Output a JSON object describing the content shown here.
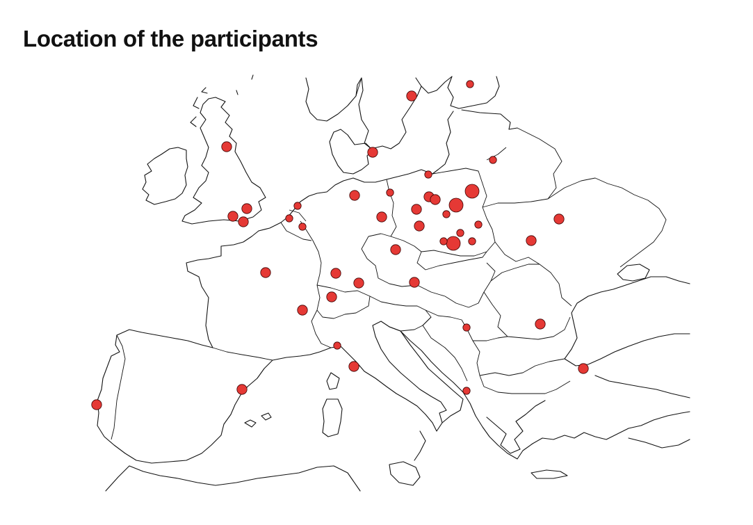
{
  "title": "Location of the participants",
  "style": {
    "marker_color": "#e53935",
    "outline_color": "#111111",
    "background": "#ffffff"
  },
  "participants": [
    {
      "place": "Edinburgh",
      "size": "medium"
    },
    {
      "place": "Cambridge",
      "size": "medium"
    },
    {
      "place": "Oxford",
      "size": "medium"
    },
    {
      "place": "Bristol",
      "size": "medium"
    },
    {
      "place": "Amsterdam",
      "size": "small"
    },
    {
      "place": "Leiden",
      "size": "small"
    },
    {
      "place": "Leuven",
      "size": "small"
    },
    {
      "place": "Paris",
      "size": "medium"
    },
    {
      "place": "Lyon",
      "size": "medium"
    },
    {
      "place": "Zurich",
      "size": "medium"
    },
    {
      "place": "Stuttgart",
      "size": "medium"
    },
    {
      "place": "Munich",
      "size": "medium"
    },
    {
      "place": "Hamburg",
      "size": "medium"
    },
    {
      "place": "Jena",
      "size": "medium"
    },
    {
      "place": "Berlin",
      "size": "small"
    },
    {
      "place": "Copenhagen",
      "size": "medium"
    },
    {
      "place": "Stockholm",
      "size": "medium"
    },
    {
      "place": "Tallinn",
      "size": "small"
    },
    {
      "place": "Vilnius",
      "size": "small"
    },
    {
      "place": "Gdansk",
      "size": "small"
    },
    {
      "place": "Torun",
      "size": "medium"
    },
    {
      "place": "Bydgoszcz",
      "size": "medium"
    },
    {
      "place": "Warsaw",
      "size": "large"
    },
    {
      "place": "Bialystok",
      "size": "large"
    },
    {
      "place": "Poznan",
      "size": "medium"
    },
    {
      "place": "Wroclaw",
      "size": "medium"
    },
    {
      "place": "Lodz",
      "size": "small"
    },
    {
      "place": "Kielce",
      "size": "small"
    },
    {
      "place": "Lublin",
      "size": "small"
    },
    {
      "place": "Krakow",
      "size": "large"
    },
    {
      "place": "Katowice",
      "size": "small"
    },
    {
      "place": "Rzeszow",
      "size": "small"
    },
    {
      "place": "Prague",
      "size": "medium"
    },
    {
      "place": "Vienna",
      "size": "medium"
    },
    {
      "place": "Kyiv",
      "size": "medium"
    },
    {
      "place": "Lviv",
      "size": "medium"
    },
    {
      "place": "Belgrade",
      "size": "small"
    },
    {
      "place": "Bucharest",
      "size": "medium"
    },
    {
      "place": "Istanbul",
      "size": "medium"
    },
    {
      "place": "Tirana",
      "size": "small"
    },
    {
      "place": "Genoa",
      "size": "small"
    },
    {
      "place": "Pisa",
      "size": "medium"
    },
    {
      "place": "Barcelona",
      "size": "medium"
    },
    {
      "place": "Lisbon",
      "size": "medium"
    }
  ]
}
